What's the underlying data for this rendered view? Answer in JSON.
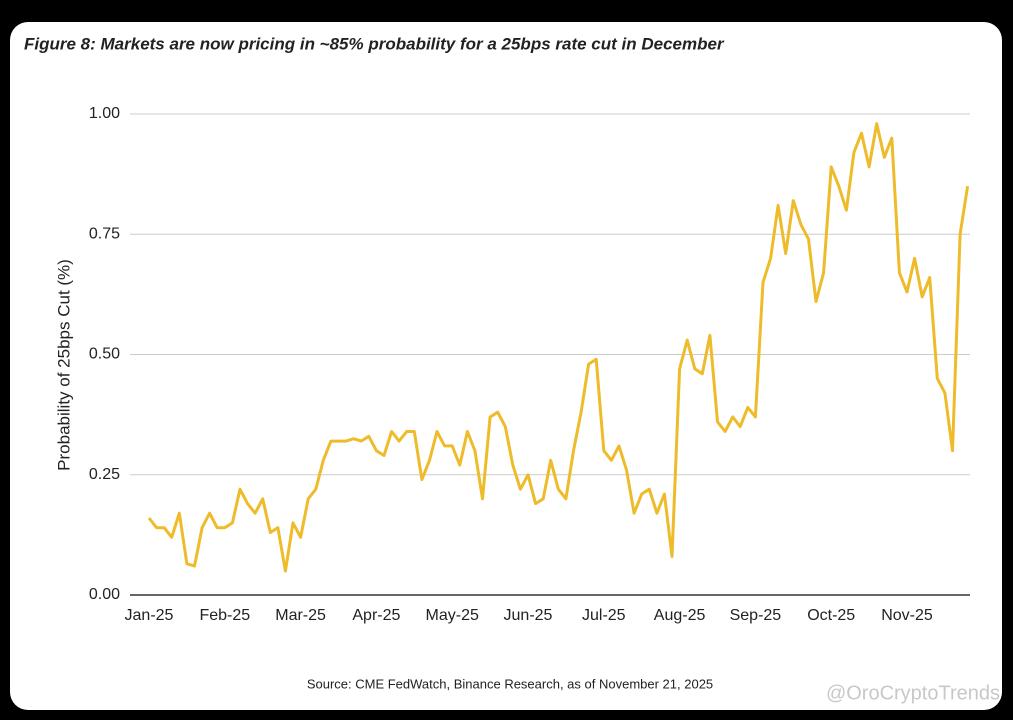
{
  "chart_data": {
    "type": "line",
    "title": "Figure 8: Markets are now pricing in  ~85% probability for a 25bps rate cut in December",
    "y_label": "Probability of 25bps Cut (%)",
    "source": "Source: CME FedWatch, Binance Research, as of November 21, 2025",
    "watermark": "@OroCryptoTrends",
    "color": "#eebb2b",
    "categories": [
      "Jan-25",
      null,
      null,
      null,
      null,
      null,
      null,
      null,
      null,
      null,
      "Feb-25",
      null,
      null,
      null,
      null,
      null,
      null,
      null,
      null,
      null,
      "Mar-25",
      null,
      null,
      null,
      null,
      null,
      null,
      null,
      null,
      null,
      "Apr-25",
      null,
      null,
      null,
      null,
      null,
      null,
      null,
      null,
      null,
      "May-25",
      null,
      null,
      null,
      null,
      null,
      null,
      null,
      null,
      null,
      "Jun-25",
      null,
      null,
      null,
      null,
      null,
      null,
      null,
      null,
      null,
      "Jul-25",
      null,
      null,
      null,
      null,
      null,
      null,
      null,
      null,
      null,
      "Aug-25",
      null,
      null,
      null,
      null,
      null,
      null,
      null,
      null,
      null,
      "Sep-25",
      null,
      null,
      null,
      null,
      null,
      null,
      null,
      null,
      null,
      "Oct-25",
      null,
      null,
      null,
      null,
      null,
      null,
      null,
      null,
      null,
      "Nov-25",
      null,
      null,
      null,
      null,
      null,
      null,
      null,
      null
    ],
    "values": [
      0.16,
      0.14,
      0.14,
      0.12,
      0.17,
      0.065,
      0.06,
      0.14,
      0.17,
      0.14,
      0.14,
      0.15,
      0.22,
      0.19,
      0.17,
      0.2,
      0.13,
      0.14,
      0.05,
      0.15,
      0.12,
      0.2,
      0.22,
      0.28,
      0.32,
      0.32,
      0.32,
      0.325,
      0.32,
      0.33,
      0.3,
      0.29,
      0.34,
      0.32,
      0.34,
      0.34,
      0.24,
      0.28,
      0.34,
      0.31,
      0.31,
      0.27,
      0.34,
      0.3,
      0.2,
      0.37,
      0.38,
      0.35,
      0.27,
      0.22,
      0.25,
      0.19,
      0.2,
      0.28,
      0.22,
      0.2,
      0.3,
      0.38,
      0.48,
      0.49,
      0.3,
      0.28,
      0.31,
      0.26,
      0.17,
      0.21,
      0.22,
      0.17,
      0.21,
      0.08,
      0.47,
      0.53,
      0.47,
      0.46,
      0.54,
      0.36,
      0.34,
      0.37,
      0.35,
      0.39,
      0.37,
      0.65,
      0.7,
      0.81,
      0.71,
      0.82,
      0.77,
      0.74,
      0.61,
      0.67,
      0.89,
      0.85,
      0.8,
      0.92,
      0.96,
      0.89,
      0.98,
      0.91,
      0.95,
      0.67,
      0.63,
      0.7,
      0.62,
      0.66,
      0.45,
      0.42,
      0.3,
      0.75,
      0.85
    ],
    "ylim": [
      0,
      1
    ],
    "yticks": [
      {
        "value": 0,
        "label": "0.00"
      },
      {
        "value": 0.25,
        "label": "0.25"
      },
      {
        "value": 0.5,
        "label": "0.50"
      },
      {
        "value": 0.75,
        "label": "0.75"
      },
      {
        "value": 1,
        "label": "1.00"
      }
    ],
    "grid": true
  }
}
